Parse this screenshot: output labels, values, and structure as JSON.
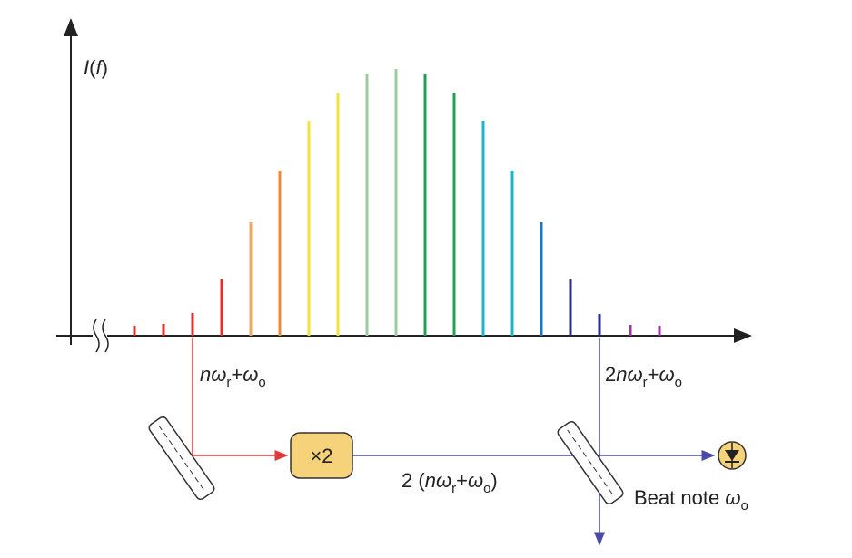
{
  "y_axis_label": [
    "I",
    "(",
    "f",
    ")"
  ],
  "lower_line_label": [
    "n",
    "ω",
    "r",
    "+",
    "ω",
    "o"
  ],
  "upper_line_label": [
    "2",
    "n",
    "ω",
    "r",
    "+",
    "ω",
    "o"
  ],
  "doubler_label": "×2",
  "doubled_label": [
    "2 (",
    "n",
    "ω",
    "r",
    "+",
    "ω",
    "o",
    ")"
  ],
  "beat_note_label": [
    "Beat note ",
    "ω",
    "o"
  ]
}
